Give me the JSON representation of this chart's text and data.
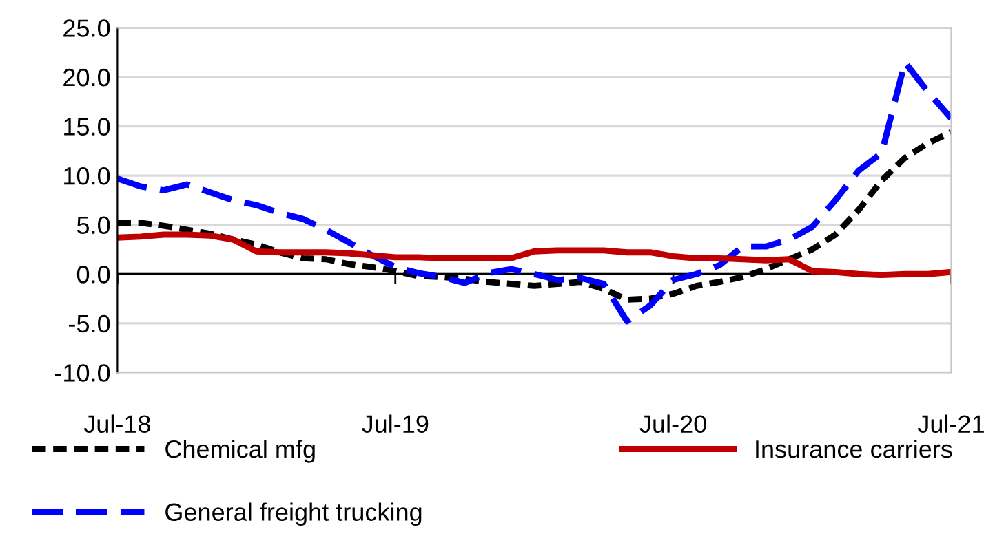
{
  "chart_data": {
    "type": "line",
    "x": [
      "2018-07",
      "2018-08",
      "2018-09",
      "2018-10",
      "2018-11",
      "2018-12",
      "2019-01",
      "2019-02",
      "2019-03",
      "2019-04",
      "2019-05",
      "2019-06",
      "2019-07",
      "2019-08",
      "2019-09",
      "2019-10",
      "2019-11",
      "2019-12",
      "2020-01",
      "2020-02",
      "2020-03",
      "2020-04",
      "2020-05",
      "2020-06",
      "2020-07",
      "2020-08",
      "2020-09",
      "2020-10",
      "2020-11",
      "2020-12",
      "2021-01",
      "2021-02",
      "2021-03",
      "2021-04",
      "2021-05",
      "2021-06",
      "2021-07"
    ],
    "series": [
      {
        "name": "Chemical mfg",
        "color": "#000000",
        "line_style": "dotted",
        "values": [
          5.2,
          5.2,
          4.9,
          4.5,
          4.1,
          3.5,
          3.0,
          2.2,
          1.6,
          1.5,
          1.0,
          0.7,
          0.3,
          -0.2,
          -0.3,
          -0.5,
          -0.8,
          -1.0,
          -1.2,
          -1.0,
          -0.8,
          -1.5,
          -2.6,
          -2.5,
          -2.0,
          -1.2,
          -0.8,
          -0.3,
          0.5,
          1.5,
          2.5,
          4.0,
          6.5,
          9.5,
          11.8,
          13.3,
          14.4
        ]
      },
      {
        "name": "General freight trucking",
        "color": "#0000ff",
        "line_style": "dashed",
        "values": [
          9.7,
          8.9,
          8.5,
          9.1,
          8.3,
          7.5,
          7.0,
          6.2,
          5.6,
          4.5,
          3.2,
          1.9,
          0.7,
          0.1,
          -0.3,
          -0.9,
          0.1,
          0.5,
          0.0,
          -0.6,
          -0.4,
          -1.0,
          -4.8,
          -3.2,
          -0.6,
          0.0,
          0.9,
          2.8,
          2.8,
          3.5,
          4.8,
          7.5,
          10.5,
          12.3,
          21.5,
          18.5,
          15.8
        ]
      },
      {
        "name": "Insurance carriers",
        "color": "#c00000",
        "line_style": "solid",
        "values": [
          3.7,
          3.8,
          4.0,
          4.0,
          3.9,
          3.5,
          2.3,
          2.2,
          2.2,
          2.2,
          2.1,
          1.9,
          1.7,
          1.7,
          1.6,
          1.6,
          1.6,
          1.6,
          2.3,
          2.4,
          2.4,
          2.4,
          2.2,
          2.2,
          1.8,
          1.6,
          1.6,
          1.5,
          1.4,
          1.5,
          0.3,
          0.2,
          0.0,
          -0.1,
          0.0,
          0.0,
          0.2
        ]
      }
    ],
    "xlim": [
      "2018-07",
      "2021-07"
    ],
    "xticks": [
      {
        "value": "2018-07",
        "label": "Jul-18"
      },
      {
        "value": "2019-07",
        "label": "Jul-19"
      },
      {
        "value": "2020-07",
        "label": "Jul-20"
      },
      {
        "value": "2021-07",
        "label": "Jul-21"
      }
    ],
    "ylim": [
      -10,
      25
    ],
    "yticks": [
      {
        "value": -10,
        "label": "-10.0"
      },
      {
        "value": -5,
        "label": "-5.0"
      },
      {
        "value": 0,
        "label": "0.0"
      },
      {
        "value": 5,
        "label": "5.0"
      },
      {
        "value": 10,
        "label": "10.0"
      },
      {
        "value": 15,
        "label": "15.0"
      },
      {
        "value": 20,
        "label": "20.0"
      },
      {
        "value": 25,
        "label": "25.0"
      }
    ],
    "grid": "y",
    "legend": "bottom",
    "marker": "none"
  }
}
